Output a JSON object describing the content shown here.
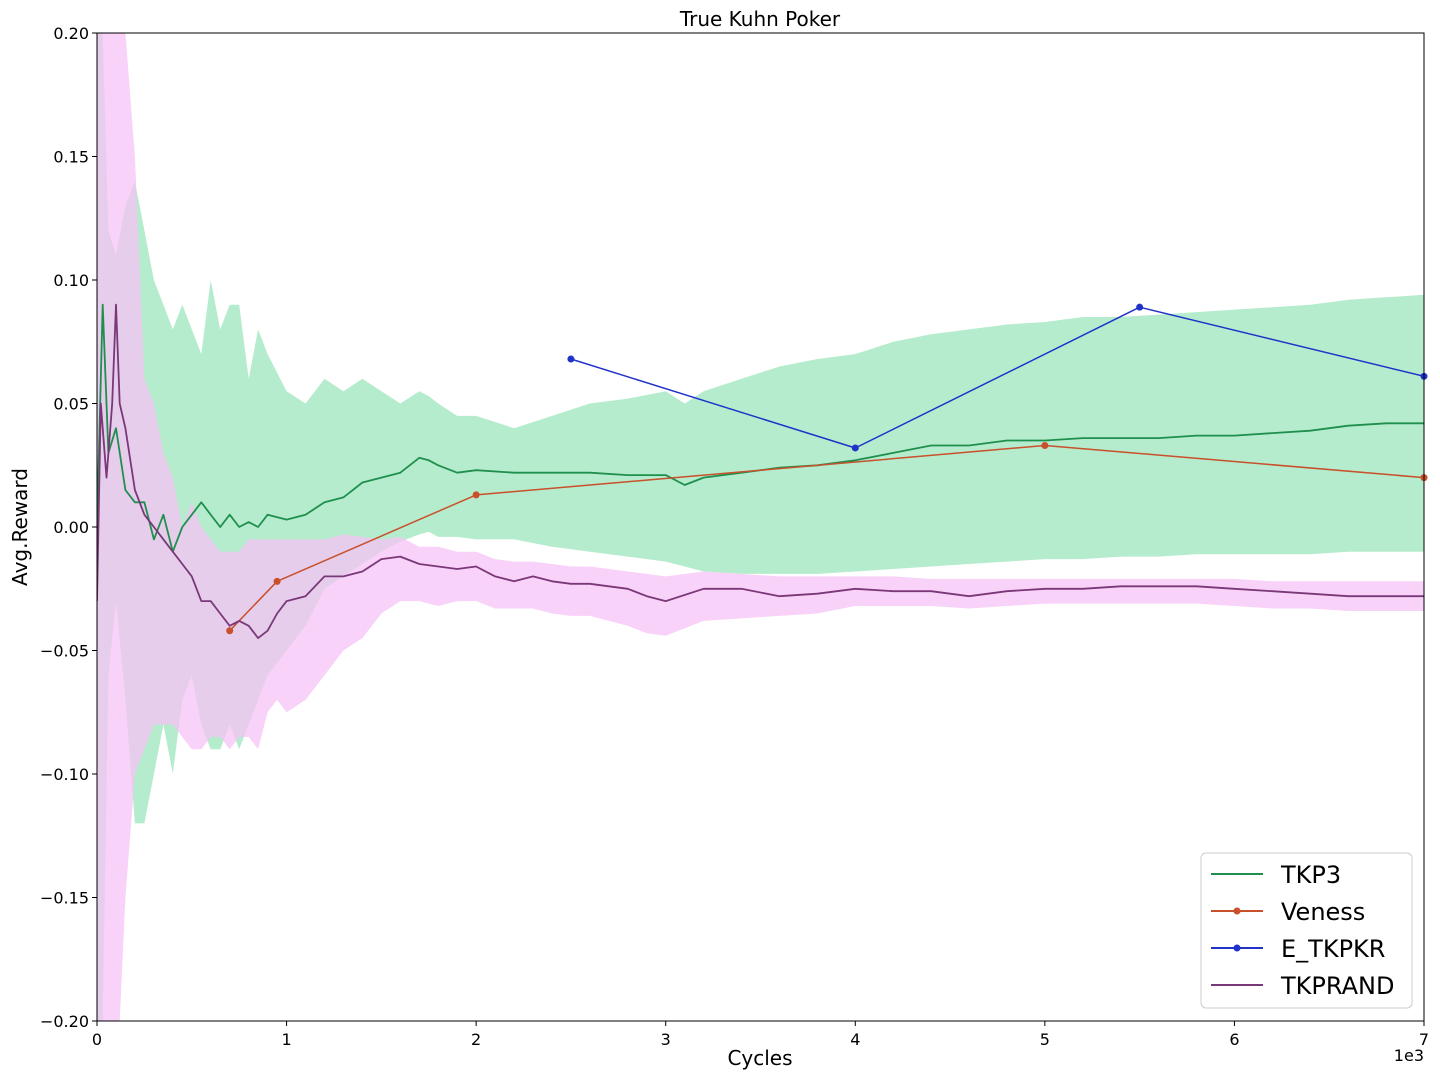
{
  "chart_data": {
    "type": "line",
    "title": "True Kuhn Poker",
    "xlabel": "Cycles",
    "ylabel": "Avg.Reward",
    "x_offset_text": "1e3",
    "xlim": [
      0,
      7000
    ],
    "ylim": [
      -0.2,
      0.2
    ],
    "x_ticks": [
      0,
      1000,
      2000,
      3000,
      4000,
      5000,
      6000,
      7000
    ],
    "x_tick_labels": [
      "0",
      "1",
      "2",
      "3",
      "4",
      "5",
      "6",
      "7"
    ],
    "y_ticks": [
      -0.2,
      -0.15,
      -0.1,
      -0.05,
      0.0,
      0.05,
      0.1,
      0.15,
      0.2
    ],
    "y_tick_labels": [
      "−0.20",
      "−0.15",
      "−0.10",
      "−0.05",
      "0.00",
      "0.05",
      "0.10",
      "0.15",
      "0.20"
    ],
    "grid": false,
    "legend_position": "bottom-right",
    "series": [
      {
        "name": "TKP3",
        "color": "#1f8f4e",
        "band_color": "#9de6bd",
        "marker": false,
        "x": [
          0,
          30,
          60,
          100,
          150,
          200,
          250,
          300,
          350,
          400,
          450,
          500,
          550,
          600,
          650,
          700,
          750,
          800,
          850,
          900,
          1000,
          1100,
          1200,
          1300,
          1400,
          1500,
          1600,
          1700,
          1750,
          1800,
          1900,
          2000,
          2200,
          2400,
          2600,
          2800,
          3000,
          3100,
          3200,
          3400,
          3600,
          3800,
          4000,
          4200,
          4400,
          4600,
          4800,
          5000,
          5200,
          5400,
          5600,
          5800,
          6000,
          6200,
          6400,
          6600,
          6800,
          7000
        ],
        "y": [
          0.0,
          0.09,
          0.03,
          0.04,
          0.015,
          0.01,
          0.01,
          -0.005,
          0.005,
          -0.01,
          0.0,
          0.005,
          0.01,
          0.005,
          0.0,
          0.005,
          0.0,
          0.002,
          0.0,
          0.005,
          0.003,
          0.005,
          0.01,
          0.012,
          0.018,
          0.02,
          0.022,
          0.028,
          0.027,
          0.025,
          0.022,
          0.023,
          0.022,
          0.022,
          0.022,
          0.021,
          0.021,
          0.017,
          0.02,
          0.022,
          0.024,
          0.025,
          0.027,
          0.03,
          0.033,
          0.033,
          0.035,
          0.035,
          0.036,
          0.036,
          0.036,
          0.037,
          0.037,
          0.038,
          0.039,
          0.041,
          0.042,
          0.042
        ],
        "band_upper": [
          0.2,
          0.2,
          0.12,
          0.11,
          0.13,
          0.14,
          0.12,
          0.1,
          0.09,
          0.08,
          0.09,
          0.08,
          0.07,
          0.1,
          0.08,
          0.09,
          0.09,
          0.06,
          0.08,
          0.07,
          0.055,
          0.05,
          0.06,
          0.055,
          0.06,
          0.055,
          0.05,
          0.055,
          0.053,
          0.05,
          0.045,
          0.045,
          0.04,
          0.045,
          0.05,
          0.052,
          0.055,
          0.05,
          0.055,
          0.06,
          0.065,
          0.068,
          0.07,
          0.075,
          0.078,
          0.08,
          0.082,
          0.083,
          0.085,
          0.085,
          0.086,
          0.087,
          0.088,
          0.089,
          0.09,
          0.092,
          0.093,
          0.094
        ],
        "band_lower": [
          -0.2,
          -0.2,
          -0.06,
          -0.03,
          -0.07,
          -0.12,
          -0.12,
          -0.1,
          -0.08,
          -0.1,
          -0.07,
          -0.06,
          -0.08,
          -0.09,
          -0.09,
          -0.08,
          -0.09,
          -0.08,
          -0.07,
          -0.06,
          -0.05,
          -0.04,
          -0.025,
          -0.02,
          -0.015,
          -0.01,
          -0.006,
          -0.003,
          -0.002,
          -0.004,
          -0.004,
          -0.005,
          -0.005,
          -0.008,
          -0.01,
          -0.012,
          -0.014,
          -0.016,
          -0.018,
          -0.019,
          -0.019,
          -0.019,
          -0.018,
          -0.017,
          -0.016,
          -0.015,
          -0.014,
          -0.013,
          -0.013,
          -0.012,
          -0.012,
          -0.011,
          -0.011,
          -0.011,
          -0.011,
          -0.01,
          -0.01,
          -0.01
        ]
      },
      {
        "name": "Veness",
        "color": "#c8502a",
        "marker": true,
        "x": [
          700,
          950,
          2000,
          5000,
          7000
        ],
        "y": [
          -0.042,
          -0.022,
          0.013,
          0.033,
          0.02
        ]
      },
      {
        "name": "E_TKPKR",
        "color": "#2032c8",
        "marker": true,
        "x": [
          2500,
          4000,
          5500,
          7000
        ],
        "y": [
          0.068,
          0.032,
          0.089,
          0.061
        ]
      },
      {
        "name": "TKPRAND",
        "color": "#7a3878",
        "band_color": "#f5c3f5",
        "marker": false,
        "x": [
          0,
          20,
          50,
          80,
          100,
          120,
          150,
          200,
          250,
          300,
          350,
          400,
          450,
          500,
          550,
          600,
          650,
          700,
          750,
          800,
          850,
          900,
          950,
          1000,
          1100,
          1200,
          1300,
          1400,
          1500,
          1600,
          1700,
          1800,
          1900,
          2000,
          2100,
          2200,
          2300,
          2400,
          2500,
          2600,
          2700,
          2800,
          2900,
          3000,
          3200,
          3400,
          3600,
          3800,
          4000,
          4200,
          4400,
          4600,
          4800,
          5000,
          5200,
          5400,
          5600,
          5800,
          6000,
          6200,
          6400,
          6600,
          6800,
          7000
        ],
        "y": [
          -0.03,
          0.05,
          0.02,
          0.05,
          0.09,
          0.05,
          0.04,
          0.015,
          0.005,
          0.0,
          -0.005,
          -0.01,
          -0.015,
          -0.02,
          -0.03,
          -0.03,
          -0.035,
          -0.04,
          -0.038,
          -0.04,
          -0.045,
          -0.042,
          -0.035,
          -0.03,
          -0.028,
          -0.02,
          -0.02,
          -0.018,
          -0.013,
          -0.012,
          -0.015,
          -0.016,
          -0.017,
          -0.016,
          -0.02,
          -0.022,
          -0.02,
          -0.022,
          -0.023,
          -0.023,
          -0.024,
          -0.025,
          -0.028,
          -0.03,
          -0.025,
          -0.025,
          -0.028,
          -0.027,
          -0.025,
          -0.026,
          -0.026,
          -0.028,
          -0.026,
          -0.025,
          -0.025,
          -0.024,
          -0.024,
          -0.024,
          -0.025,
          -0.026,
          -0.027,
          -0.028,
          -0.028,
          -0.028
        ],
        "band_upper": [
          0.2,
          0.2,
          0.2,
          0.2,
          0.2,
          0.2,
          0.2,
          0.15,
          0.06,
          0.05,
          0.03,
          0.02,
          0.0,
          0.01,
          0.0,
          -0.005,
          -0.01,
          -0.01,
          -0.01,
          -0.005,
          -0.005,
          -0.005,
          -0.005,
          -0.005,
          -0.005,
          -0.005,
          -0.003,
          -0.004,
          -0.005,
          -0.004,
          -0.008,
          -0.008,
          -0.01,
          -0.01,
          -0.013,
          -0.014,
          -0.014,
          -0.015,
          -0.016,
          -0.016,
          -0.017,
          -0.018,
          -0.019,
          -0.02,
          -0.018,
          -0.019,
          -0.02,
          -0.02,
          -0.02,
          -0.02,
          -0.021,
          -0.021,
          -0.021,
          -0.021,
          -0.021,
          -0.021,
          -0.021,
          -0.021,
          -0.021,
          -0.022,
          -0.022,
          -0.022,
          -0.022,
          -0.022
        ],
        "band_lower": [
          -0.2,
          -0.2,
          -0.2,
          -0.2,
          -0.2,
          -0.2,
          -0.15,
          -0.1,
          -0.09,
          -0.08,
          -0.08,
          -0.08,
          -0.085,
          -0.09,
          -0.09,
          -0.085,
          -0.085,
          -0.09,
          -0.085,
          -0.085,
          -0.09,
          -0.075,
          -0.07,
          -0.075,
          -0.07,
          -0.06,
          -0.05,
          -0.045,
          -0.035,
          -0.03,
          -0.03,
          -0.032,
          -0.03,
          -0.03,
          -0.033,
          -0.033,
          -0.033,
          -0.035,
          -0.036,
          -0.036,
          -0.038,
          -0.04,
          -0.043,
          -0.044,
          -0.038,
          -0.037,
          -0.036,
          -0.035,
          -0.032,
          -0.032,
          -0.032,
          -0.033,
          -0.032,
          -0.031,
          -0.031,
          -0.031,
          -0.031,
          -0.031,
          -0.032,
          -0.033,
          -0.033,
          -0.034,
          -0.034,
          -0.034
        ]
      }
    ]
  }
}
